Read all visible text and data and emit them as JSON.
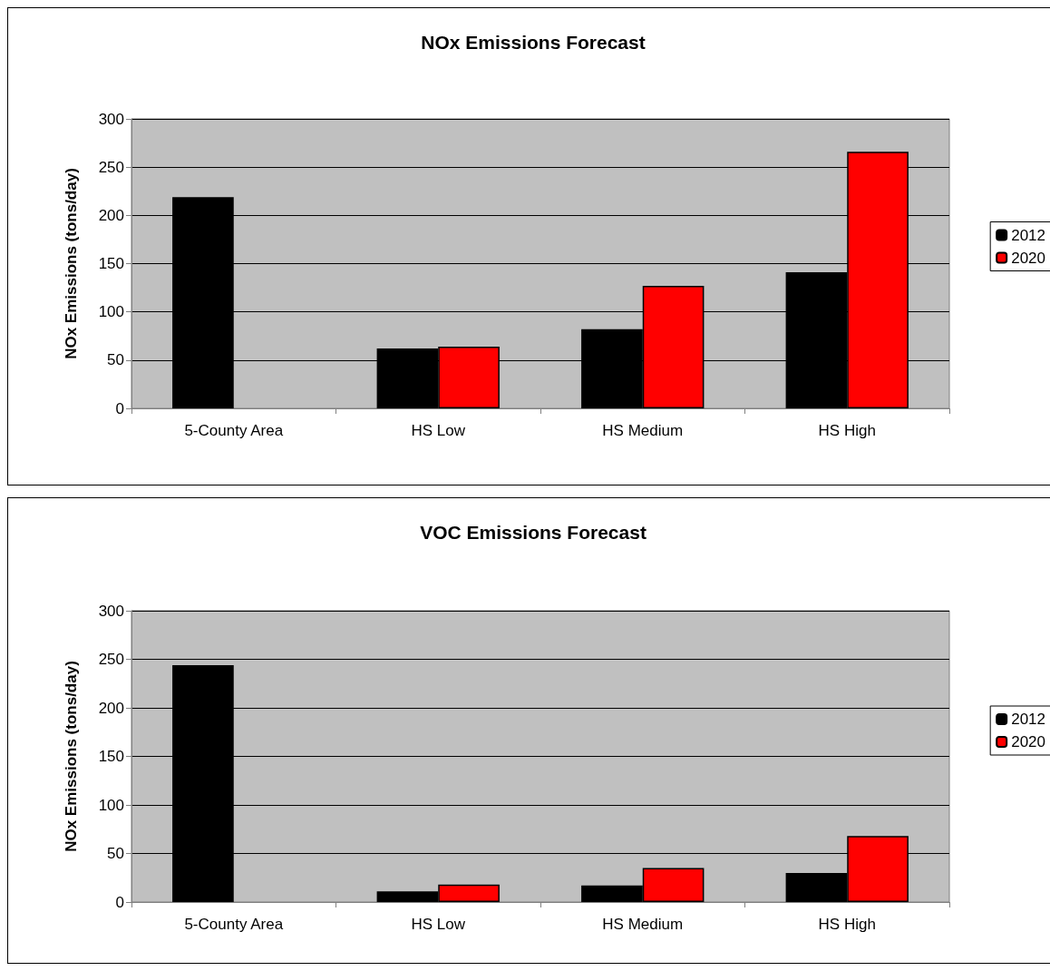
{
  "chart_data": [
    {
      "type": "bar",
      "title": "NOx Emissions Forecast",
      "ylabel": "NOx Emissions (tons/day)",
      "categories": [
        "5-County Area",
        "HS Low",
        "HS Medium",
        "HS High"
      ],
      "series": [
        {
          "name": "2012",
          "color": "#000000",
          "values": [
            219,
            62,
            82,
            141
          ]
        },
        {
          "name": "2020",
          "color": "#ff0000",
          "values": [
            null,
            64,
            127,
            266
          ]
        }
      ],
      "ylim": [
        0,
        300
      ],
      "yticks": [
        0,
        50,
        100,
        150,
        200,
        250,
        300
      ],
      "grid": "y",
      "legend": "right"
    },
    {
      "type": "bar",
      "title": "VOC Emissions Forecast",
      "ylabel": "NOx Emissions (tons/day)",
      "categories": [
        "5-County Area",
        "HS Low",
        "HS Medium",
        "HS High"
      ],
      "series": [
        {
          "name": "2012",
          "color": "#000000",
          "values": [
            244,
            11,
            17,
            30
          ]
        },
        {
          "name": "2020",
          "color": "#ff0000",
          "values": [
            null,
            18,
            35,
            68
          ]
        }
      ],
      "ylim": [
        0,
        300
      ],
      "yticks": [
        0,
        50,
        100,
        150,
        200,
        250,
        300
      ],
      "grid": "y",
      "legend": "right"
    }
  ]
}
